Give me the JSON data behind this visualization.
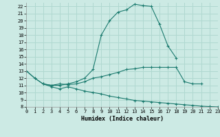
{
  "xlabel": "Humidex (Indice chaleur)",
  "bg_color": "#cceae4",
  "grid_color": "#b0d8d0",
  "line_color": "#1a7a6e",
  "xlim": [
    0,
    23
  ],
  "ylim": [
    8,
    22.5
  ],
  "xticks": [
    0,
    1,
    2,
    3,
    4,
    5,
    6,
    7,
    8,
    9,
    10,
    11,
    12,
    13,
    14,
    15,
    16,
    17,
    18,
    19,
    20,
    21,
    22,
    23
  ],
  "yticks": [
    8,
    9,
    10,
    11,
    12,
    13,
    14,
    15,
    16,
    17,
    18,
    19,
    20,
    21,
    22
  ],
  "line1_x": [
    0,
    1,
    2,
    3,
    4,
    5,
    6,
    7,
    8,
    9,
    10,
    11,
    12,
    13,
    14,
    15,
    16,
    17,
    18
  ],
  "line1_y": [
    13.0,
    12.0,
    11.2,
    11.0,
    11.0,
    11.2,
    11.5,
    12.0,
    13.2,
    18.0,
    20.0,
    21.2,
    21.5,
    22.3,
    22.1,
    22.0,
    19.5,
    16.5,
    14.8
  ],
  "line2_x": [
    0,
    1,
    2,
    3,
    4,
    5,
    6,
    7,
    8,
    9,
    10,
    11,
    12,
    13,
    14,
    15,
    16,
    17,
    18,
    19,
    20,
    21
  ],
  "line2_y": [
    13.0,
    12.0,
    11.2,
    11.0,
    11.2,
    11.1,
    11.2,
    11.5,
    12.0,
    12.2,
    12.5,
    12.8,
    13.2,
    13.3,
    13.5,
    13.5,
    13.5,
    13.5,
    13.5,
    11.5,
    11.2,
    11.2
  ],
  "line3_x": [
    2,
    3,
    4,
    5,
    6,
    7,
    8,
    9,
    10,
    11,
    12,
    13,
    14,
    15,
    16,
    17,
    18,
    19,
    20,
    21,
    22,
    23
  ],
  "line3_y": [
    11.2,
    10.8,
    10.5,
    10.8,
    10.5,
    10.2,
    10.0,
    9.8,
    9.5,
    9.3,
    9.1,
    8.9,
    8.8,
    8.7,
    8.6,
    8.5,
    8.4,
    8.3,
    8.2,
    8.1,
    8.05,
    8.0
  ]
}
